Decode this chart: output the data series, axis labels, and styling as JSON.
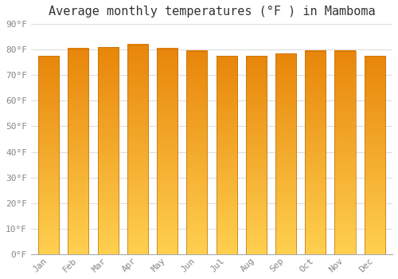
{
  "title": "Average monthly temperatures (°F ) in Mamboma",
  "months": [
    "Jan",
    "Feb",
    "Mar",
    "Apr",
    "May",
    "Jun",
    "Jul",
    "Aug",
    "Sep",
    "Oct",
    "Nov",
    "Dec"
  ],
  "values": [
    77.5,
    80.5,
    81.0,
    82.0,
    80.5,
    79.5,
    77.5,
    77.5,
    78.5,
    79.5,
    79.5,
    77.5
  ],
  "bar_color_top": "#E8860A",
  "bar_color_bottom": "#FFD050",
  "background_color": "#FFFFFF",
  "ylim": [
    0,
    90
  ],
  "yticks": [
    0,
    10,
    20,
    30,
    40,
    50,
    60,
    70,
    80,
    90
  ],
  "ytick_labels": [
    "0°F",
    "10°F",
    "20°F",
    "30°F",
    "40°F",
    "50°F",
    "60°F",
    "70°F",
    "80°F",
    "90°F"
  ],
  "grid_color": "#dddddd",
  "title_fontsize": 11,
  "font_family": "monospace",
  "bar_edge_color": "#C07010",
  "bar_width": 0.7,
  "gradient_steps": 200
}
